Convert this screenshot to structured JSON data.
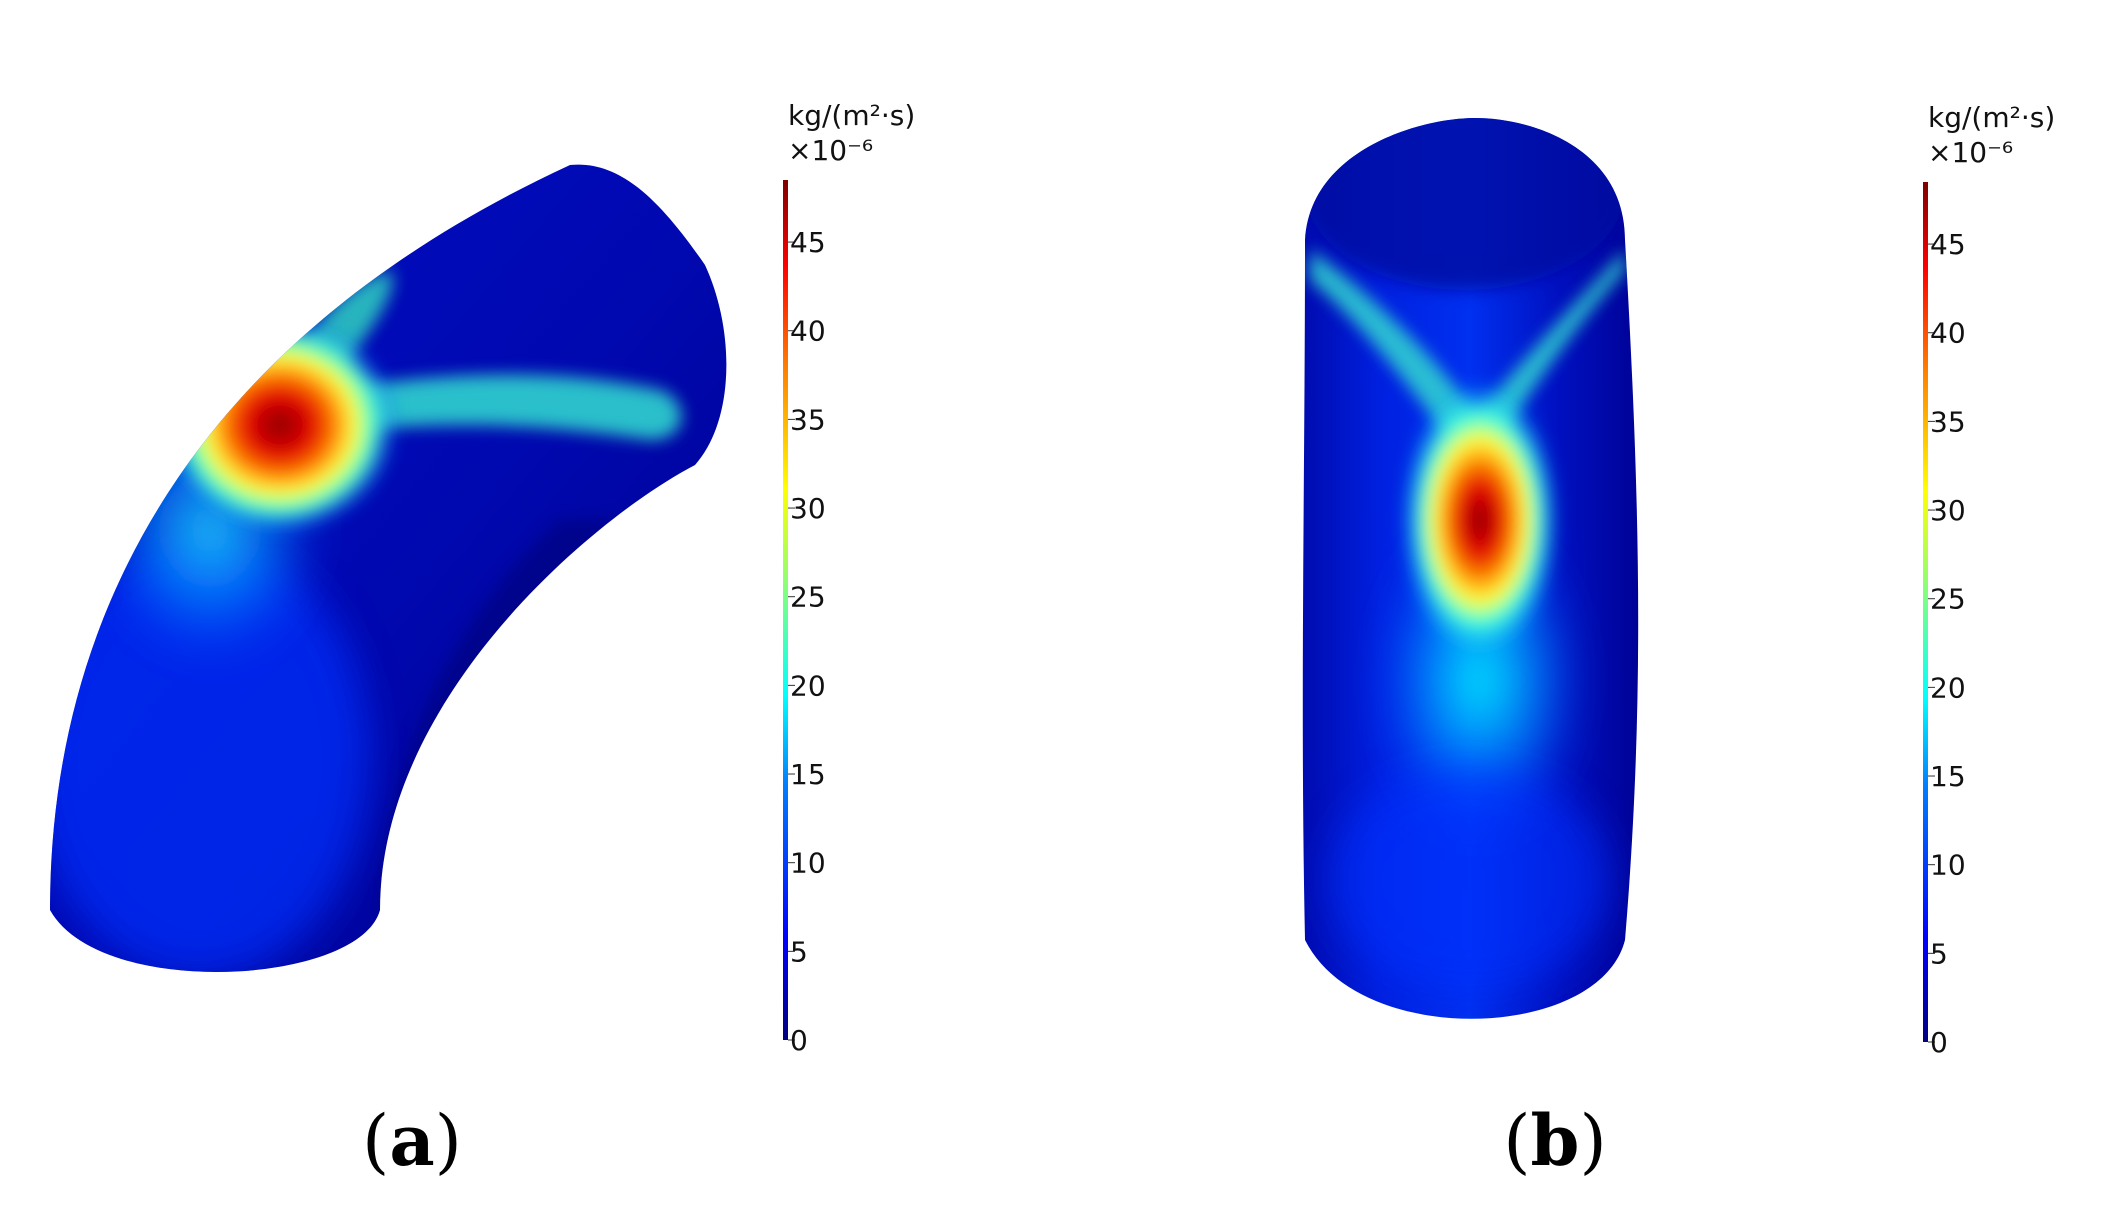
{
  "panels": [
    {
      "label_letter": "a",
      "shape": "curved-pipe-elbow",
      "colorbar": {
        "unit": "kg/(m²·s)",
        "multiplier": "×10⁻⁶",
        "ticks": [
          "0",
          "5",
          "10",
          "15",
          "20",
          "25",
          "30",
          "35",
          "40",
          "45"
        ],
        "min": 0,
        "max": 48.5
      }
    },
    {
      "label_letter": "b",
      "shape": "straight-pipe-section",
      "colorbar": {
        "unit": "kg/(m²·s)",
        "multiplier": "×10⁻⁶",
        "ticks": [
          "0",
          "5",
          "10",
          "15",
          "20",
          "25",
          "30",
          "35",
          "40",
          "45"
        ],
        "min": 0,
        "max": 48.5
      }
    }
  ],
  "colormap": [
    "#00007f",
    "#0000ff",
    "#007fff",
    "#00ffff",
    "#7fff7f",
    "#ffff00",
    "#ff7f00",
    "#ff0000",
    "#7f0000"
  ]
}
